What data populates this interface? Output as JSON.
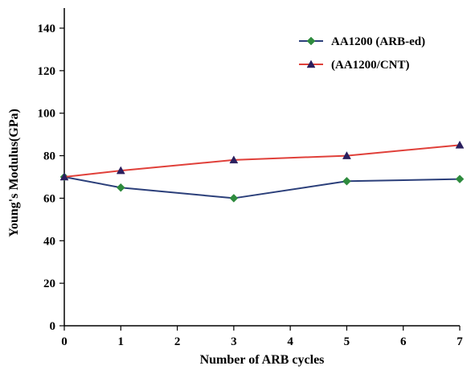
{
  "chart_data": {
    "type": "line",
    "title": "",
    "xlabel": "Number of ARB cycles",
    "ylabel": "Young's Modulus(GPa)",
    "xlim": [
      0,
      7
    ],
    "ylim": [
      0,
      140
    ],
    "xticks": [
      0,
      1,
      2,
      3,
      4,
      5,
      6,
      7
    ],
    "yticks": [
      0,
      20,
      40,
      60,
      80,
      100,
      120,
      140
    ],
    "grid": false,
    "legend_position": "top-right",
    "series": [
      {
        "name": "AA1200 (ARB-ed)",
        "x": [
          0,
          1,
          3,
          5,
          7
        ],
        "values": [
          70,
          65,
          60,
          68,
          69
        ],
        "line_color": "#2b3f7a",
        "marker": "diamond",
        "marker_color": "#2e8b3e"
      },
      {
        "name": "(AA1200/CNT)",
        "x": [
          0,
          1,
          3,
          5,
          7
        ],
        "values": [
          70,
          73,
          78,
          80,
          85
        ],
        "line_color": "#e0403a",
        "marker": "triangle",
        "marker_color": "#2a1f5e"
      }
    ]
  }
}
